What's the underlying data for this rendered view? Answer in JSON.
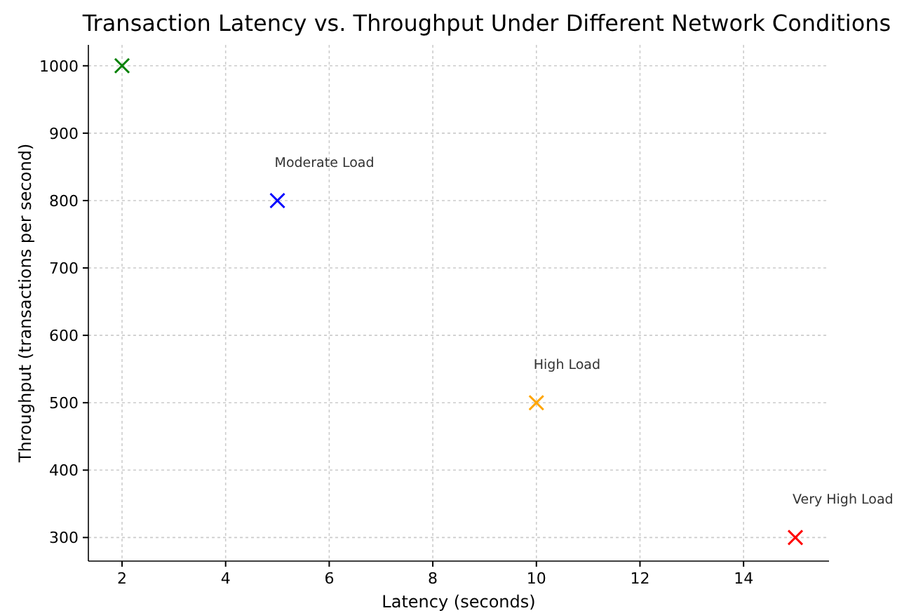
{
  "chart_data": {
    "type": "scatter",
    "title": "Transaction Latency vs. Throughput Under Different Network Conditions",
    "xlabel": "Latency (seconds)",
    "ylabel": "Throughput (transactions per second)",
    "series": [
      {
        "x": [
          2
        ],
        "values": [
          1000
        ],
        "color": "#008000"
      },
      {
        "x": [
          5
        ],
        "values": [
          800
        ],
        "color": "#0000ff"
      },
      {
        "x": [
          10
        ],
        "values": [
          500
        ],
        "color": "#ffa500"
      },
      {
        "x": [
          15
        ],
        "values": [
          300
        ],
        "color": "#ff0000"
      }
    ],
    "annotations": [
      {
        "text": "Moderate Load",
        "x": 5,
        "y": 800
      },
      {
        "text": "High Load",
        "x": 10,
        "y": 500
      },
      {
        "text": "Very High Load",
        "x": 15,
        "y": 300
      }
    ],
    "xlim": [
      1.35,
      15.65
    ],
    "xticks": [
      2,
      4,
      6,
      8,
      10,
      12,
      14
    ],
    "ylim": [
      265,
      1031
    ],
    "yticks": [
      300,
      400,
      500,
      600,
      700,
      800,
      900,
      1000
    ],
    "grid": true,
    "marker": "cross"
  }
}
